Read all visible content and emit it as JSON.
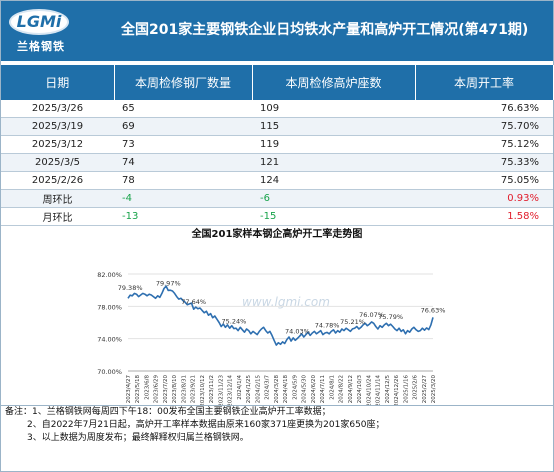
{
  "header": {
    "title": "全国201家主要钢铁企业日均铁水产量和高炉开工情况(第471期)",
    "logo_text": "LGMi",
    "logo_cn": "兰格钢铁"
  },
  "table": {
    "headers": [
      "日期",
      "本周检修钢厂数量",
      "本周检修高炉座数",
      "本周开工率"
    ],
    "rows": [
      {
        "date": "2025/3/26",
        "mills": "65",
        "furnaces": "109",
        "rate": "76.63%"
      },
      {
        "date": "2025/3/19",
        "mills": "69",
        "furnaces": "115",
        "rate": "75.70%"
      },
      {
        "date": "2025/3/12",
        "mills": "73",
        "furnaces": "119",
        "rate": "75.12%"
      },
      {
        "date": "2025/3/5",
        "mills": "74",
        "furnaces": "121",
        "rate": "75.33%"
      },
      {
        "date": "2025/2/26",
        "mills": "78",
        "furnaces": "124",
        "rate": "75.05%"
      }
    ],
    "wow": {
      "label": "周环比",
      "mills": "-4",
      "furnaces": "-6",
      "rate": "0.93%"
    },
    "mom": {
      "label": "月环比",
      "mills": "-13",
      "furnaces": "-15",
      "rate": "1.58%"
    }
  },
  "chart_data": {
    "type": "line",
    "title": "全国201家样本钢企高炉开工率走势图",
    "watermark": "www.lgmi.com",
    "ylim": [
      70,
      82
    ],
    "yticks": [
      "70.00%",
      "74.00%",
      "78.00%",
      "82.00%"
    ],
    "tick_values": [
      70,
      74,
      78,
      82
    ],
    "xticks": [
      "2023/4/27",
      "2023/5/18",
      "2023/6/8",
      "2023/6/29",
      "2023/7/20",
      "2023/8/10",
      "2023/8/31",
      "2023/9/21",
      "2023/10/12",
      "2023/11/2",
      "2023/11/23",
      "2023/12/14",
      "2024/1/4",
      "2024/1/25",
      "2024/2/15",
      "2024/3/7",
      "2024/3/28",
      "2024/4/18",
      "2024/5/9",
      "2024/5/30",
      "2024/6/20",
      "2024/7/11",
      "2024/8/1",
      "2024/8/22",
      "2024/9/12",
      "2024/10/3",
      "2024/10/24",
      "2024/11/14",
      "2024/12/5",
      "2024/12/26",
      "2025/1/16",
      "2025/2/6",
      "2025/2/27",
      "2025/3/20"
    ],
    "annotations": [
      {
        "label": "79.38%",
        "index": 1
      },
      {
        "label": "79.97%",
        "index": 19
      },
      {
        "label": "77.64%",
        "index": 31
      },
      {
        "label": "75.24%",
        "index": 50
      },
      {
        "label": "74.03%",
        "index": 80
      },
      {
        "label": "74.78%",
        "index": 94
      },
      {
        "label": "75.21%",
        "index": 106
      },
      {
        "label": "76.07%",
        "index": 115
      },
      {
        "label": "75.79%",
        "index": 124
      },
      {
        "label": "76.63%",
        "index": 144
      }
    ],
    "series": [
      {
        "color": "#2e6fb0",
        "values": [
          79.0,
          79.38,
          79.3,
          79.6,
          79.5,
          79.2,
          79.4,
          79.6,
          79.5,
          79.3,
          79.5,
          79.4,
          79.2,
          79.0,
          79.3,
          79.1,
          79.6,
          80.2,
          80.5,
          79.97,
          80.0,
          79.9,
          79.6,
          79.2,
          78.9,
          79.0,
          78.7,
          78.5,
          78.2,
          78.3,
          78.4,
          77.64,
          77.9,
          77.7,
          77.8,
          77.5,
          77.2,
          77.4,
          76.9,
          77.1,
          76.6,
          76.8,
          76.4,
          76.0,
          75.5,
          75.8,
          75.4,
          75.7,
          75.3,
          75.6,
          75.24,
          75.3,
          75.0,
          75.4,
          75.1,
          74.8,
          75.2,
          75.0,
          74.6,
          74.9,
          74.7,
          74.5,
          74.9,
          75.2,
          75.4,
          75.0,
          74.7,
          74.9,
          74.4,
          73.8,
          73.2,
          73.5,
          73.3,
          73.6,
          73.4,
          73.9,
          74.2,
          73.7,
          74.1,
          73.8,
          74.03,
          74.3,
          74.6,
          74.2,
          74.5,
          74.8,
          74.4,
          74.7,
          74.9,
          74.6,
          74.8,
          75.0,
          74.5,
          74.7,
          74.78,
          74.6,
          74.9,
          75.1,
          74.7,
          75.0,
          74.8,
          75.2,
          75.0,
          75.3,
          75.1,
          74.9,
          75.21,
          75.3,
          75.5,
          75.2,
          75.4,
          75.7,
          75.9,
          75.6,
          75.8,
          76.07,
          75.9,
          75.5,
          75.2,
          75.6,
          75.4,
          75.7,
          75.9,
          75.6,
          75.79,
          75.5,
          75.2,
          75.0,
          75.3,
          74.9,
          75.1,
          74.6,
          75.0,
          74.8,
          75.2,
          75.4,
          75.1,
          74.9,
          75.0,
          75.3,
          75.05,
          75.33,
          75.12,
          75.7,
          76.63
        ]
      }
    ]
  },
  "notes": [
    "备注：1、兰格钢铁网每周四下午18：00发布全国主要钢铁企业高炉开工率数据；",
    "2、自2022年7月21日起，高炉开工率样本数据由原来160家371座更换为201家650座；",
    "3、以上数据为周度发布；最终解释权归属兰格钢铁网。"
  ]
}
